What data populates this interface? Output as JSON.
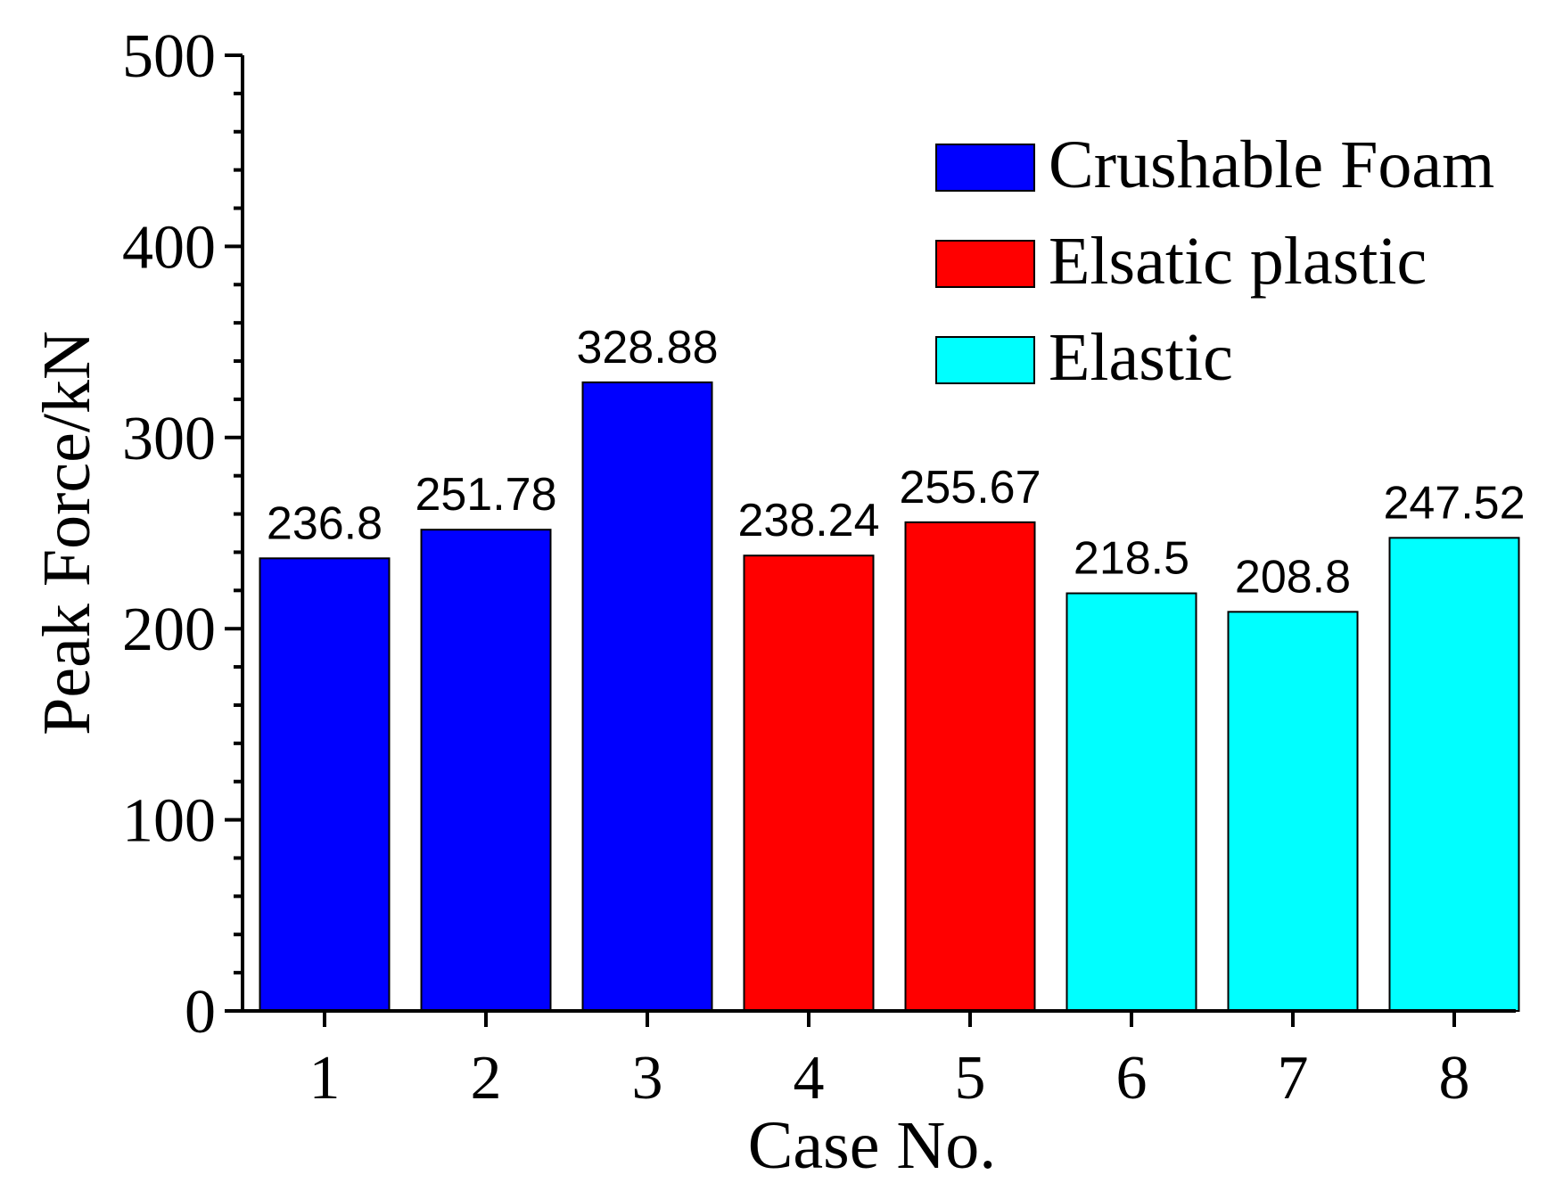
{
  "chart_data": {
    "type": "bar",
    "categories": [
      "1",
      "2",
      "3",
      "4",
      "5",
      "6",
      "7",
      "8"
    ],
    "values": [
      236.8,
      251.78,
      328.88,
      238.24,
      255.67,
      218.5,
      208.8,
      247.52
    ],
    "value_labels": [
      "236.8",
      "251.78",
      "328.88",
      "238.24",
      "255.67",
      "218.5",
      "208.8",
      "247.52"
    ],
    "series_of_bar": [
      0,
      0,
      0,
      1,
      1,
      2,
      2,
      2
    ],
    "series": [
      {
        "name": "Crushable Foam",
        "color": "#0000ff"
      },
      {
        "name": "Elsatic plastic",
        "color": "#ff0000"
      },
      {
        "name": "Elastic",
        "color": "#00ffff"
      }
    ],
    "xlabel": "Case No.",
    "ylabel": "Peak Force/kN",
    "ylim": [
      0,
      500
    ],
    "yticks": [
      "0",
      "100",
      "200",
      "300",
      "400",
      "500"
    ],
    "grid": false,
    "legend_position": "top-right"
  }
}
